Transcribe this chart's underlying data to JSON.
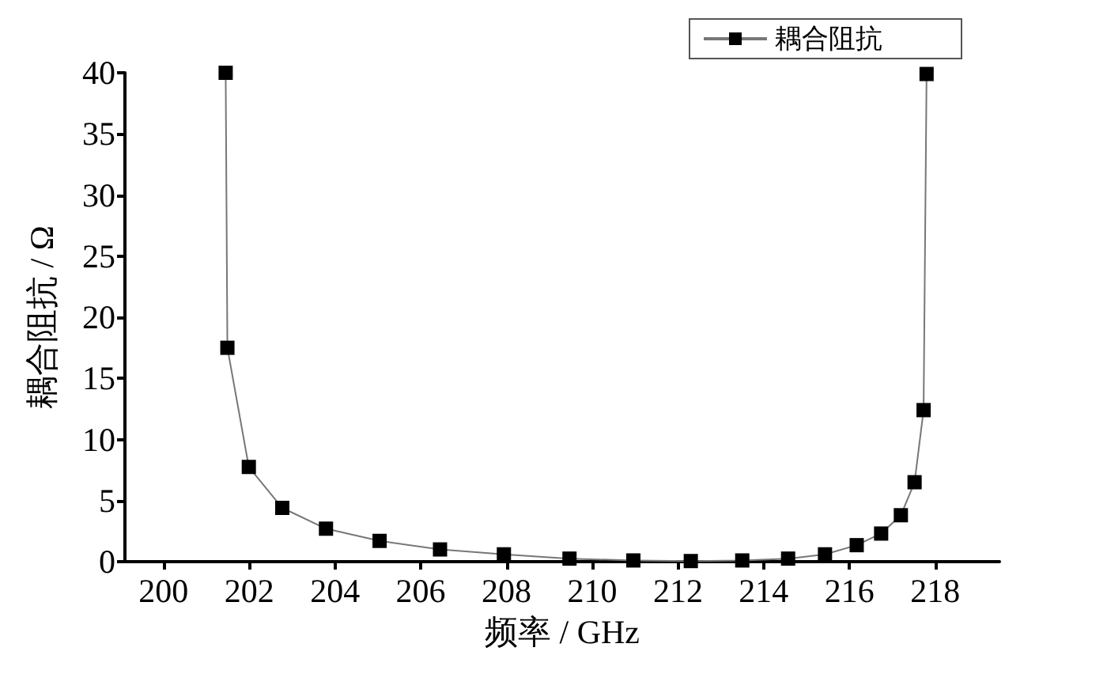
{
  "chart_data": {
    "type": "line",
    "xlabel": "频率 / GHz",
    "ylabel": "耦合阻抗 / Ω",
    "x": [
      201.45,
      201.49,
      201.99,
      202.77,
      203.79,
      205.04,
      206.45,
      207.94,
      209.47,
      210.96,
      212.3,
      213.5,
      214.57,
      215.43,
      216.17,
      216.74,
      217.2,
      217.52,
      217.73,
      217.8
    ],
    "series": [
      {
        "name": "耦合阻抗",
        "color": "#000000",
        "values": [
          40,
          17.5,
          7.75,
          4.4,
          2.7,
          1.7,
          1.0,
          0.6,
          0.25,
          0.1,
          0.05,
          0.1,
          0.25,
          0.6,
          1.35,
          2.3,
          3.8,
          6.5,
          12.4,
          39.9
        ]
      }
    ],
    "xlim": [
      199.1,
      219.5
    ],
    "xticks": [
      200,
      202,
      204,
      206,
      208,
      210,
      212,
      214,
      216,
      218
    ],
    "ylim": [
      0,
      40
    ],
    "yticks": [
      0,
      5,
      10,
      15,
      20,
      25,
      30,
      35,
      40
    ],
    "grid": false,
    "legend": "top right",
    "marker": "square",
    "line_style": "solid"
  }
}
